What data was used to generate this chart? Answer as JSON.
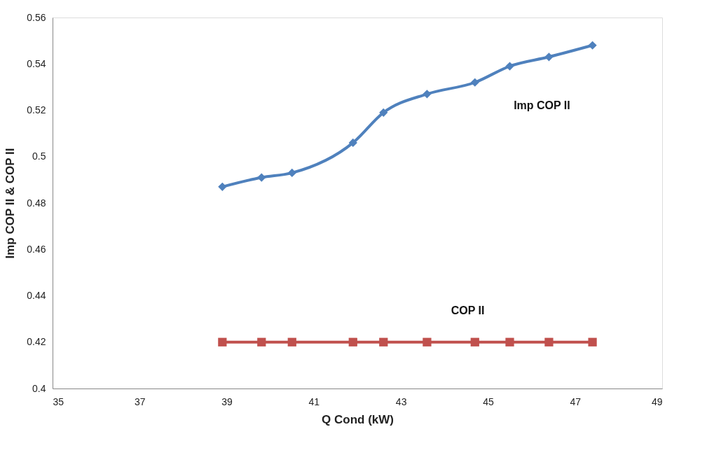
{
  "chart_data": {
    "type": "line",
    "xlabel": "Q Cond (kW)",
    "ylabel": "Imp COP II & COP II",
    "xlim": [
      35,
      49
    ],
    "xticks": [
      35,
      37,
      39,
      41,
      43,
      45,
      47,
      49
    ],
    "ylim": [
      0.4,
      0.56
    ],
    "yticks": [
      0.4,
      0.42,
      0.44,
      0.46,
      0.48,
      0.5,
      0.52,
      0.54,
      0.56
    ],
    "grid": false,
    "line_style": "solid",
    "series": [
      {
        "name": "Imp COP II",
        "color": "#4f81bd",
        "marker": "diamond",
        "x": [
          38.9,
          39.8,
          40.5,
          41.9,
          42.6,
          43.6,
          44.7,
          45.5,
          46.4,
          47.4
        ],
        "values": [
          0.487,
          0.491,
          0.493,
          0.506,
          0.519,
          0.527,
          0.532,
          0.539,
          0.543,
          0.548
        ]
      },
      {
        "name": "COP II",
        "color": "#c0504d",
        "marker": "square",
        "x": [
          38.9,
          39.8,
          40.5,
          41.9,
          42.6,
          43.6,
          44.7,
          45.5,
          46.4,
          47.4
        ],
        "values": [
          0.42,
          0.42,
          0.42,
          0.42,
          0.42,
          0.42,
          0.42,
          0.42,
          0.42,
          0.42
        ]
      }
    ]
  }
}
